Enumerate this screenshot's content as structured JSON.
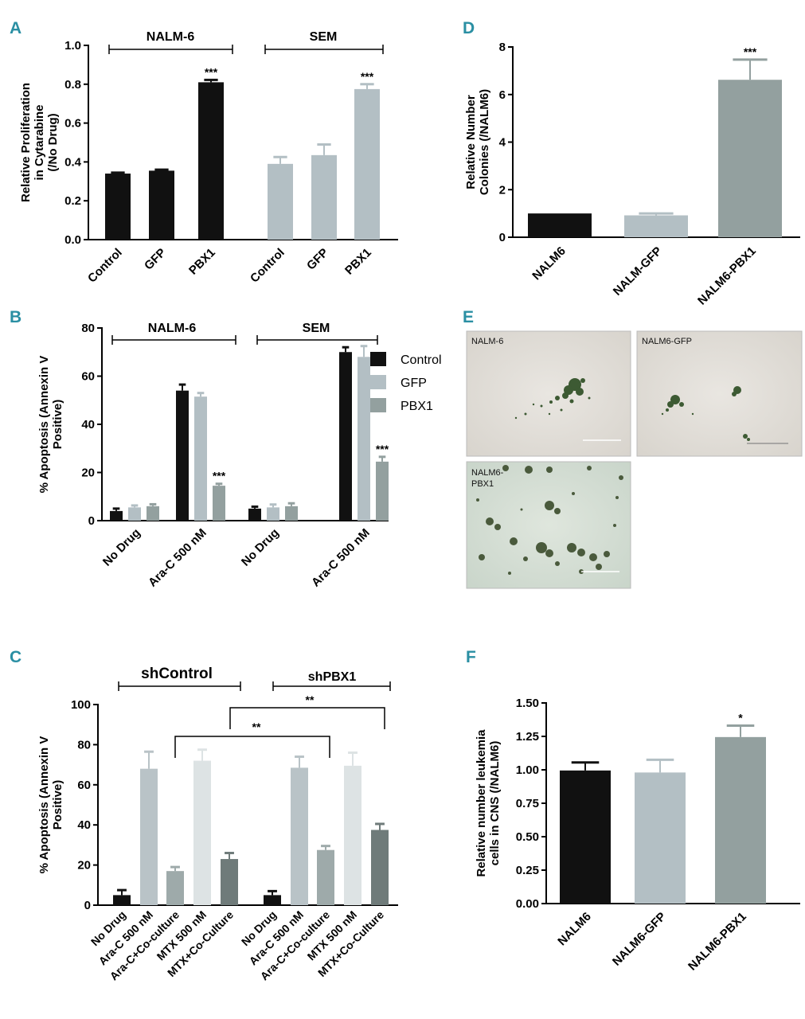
{
  "panels": {
    "A": "A",
    "B": "B",
    "C": "C",
    "D": "D",
    "E": "E",
    "F": "F"
  },
  "colors": {
    "control": "#111111",
    "gfp": "#b3bfc4",
    "pbx1": "#93a09f",
    "shc_light": "#b9c3c7",
    "shc_mid": "#9eaaaa",
    "shc_lighter": "#dde3e4",
    "shc_dark": "#6f7b7a",
    "panel_letter": "#2a8fa3"
  },
  "chart_data": [
    {
      "id": "A",
      "type": "bar",
      "ylabel": [
        "Relative Proliferation",
        "in Cytarabine",
        "(/No Drug)"
      ],
      "ylim": [
        0,
        1.0
      ],
      "yticks": [
        "0.0",
        "0.2",
        "0.4",
        "0.6",
        "0.8",
        "1.0"
      ],
      "groups": [
        {
          "label": "NALM-6",
          "categories": [
            "Control",
            "GFP",
            "PBX1"
          ],
          "values": [
            0.34,
            0.355,
            0.81
          ],
          "errors": [
            0.005,
            0.005,
            0.012
          ],
          "sig": [
            "",
            "",
            "***"
          ]
        },
        {
          "label": "SEM",
          "categories": [
            "Control",
            "GFP",
            "PBX1"
          ],
          "values": [
            0.39,
            0.435,
            0.775
          ],
          "errors": [
            0.035,
            0.055,
            0.025
          ],
          "sig": [
            "",
            "",
            "***"
          ]
        }
      ]
    },
    {
      "id": "B",
      "type": "bar",
      "ylabel": [
        "% Apoptosis (Annexin V",
        "Positive)"
      ],
      "ylim": [
        0,
        80
      ],
      "yticks": [
        "0",
        "20",
        "40",
        "60",
        "80"
      ],
      "legend": [
        "Control",
        "GFP",
        "PBX1"
      ],
      "groups": [
        {
          "label": "NALM-6",
          "categories": [
            "No Drug",
            "Ara-C 500 nM"
          ],
          "values": [
            [
              4,
              5.5,
              6
            ],
            [
              54,
              51.5,
              14.5
            ]
          ],
          "errors": [
            [
              1,
              0.8,
              0.8
            ],
            [
              2.5,
              1.5,
              0.8
            ]
          ],
          "sig": [
            [
              "",
              "",
              ""
            ],
            [
              "",
              "",
              "***"
            ]
          ]
        },
        {
          "label": "SEM",
          "categories": [
            "No Drug",
            "Ara-C 500 nM"
          ],
          "values": [
            [
              5,
              5.5,
              6
            ],
            [
              70,
              68,
              24.5
            ]
          ],
          "errors": [
            [
              0.8,
              1.2,
              1.2
            ],
            [
              2,
              4.5,
              2
            ]
          ],
          "sig": [
            [
              "",
              "",
              ""
            ],
            [
              "",
              "",
              "***"
            ]
          ]
        }
      ]
    },
    {
      "id": "C",
      "type": "bar",
      "ylabel": [
        "% Apoptosis (Annexin V",
        "Positive)"
      ],
      "ylim": [
        0,
        100
      ],
      "yticks": [
        "0",
        "20",
        "40",
        "60",
        "80",
        "100"
      ],
      "categories": [
        "No Drug",
        "Ara-C 500 nM",
        "Ara-C+Co-culture",
        "MTX 500 nM",
        "MTX+Co-Culture"
      ],
      "groups": [
        {
          "label": "shControl",
          "values": [
            5,
            68,
            17,
            72,
            23
          ],
          "errors": [
            2.5,
            8.5,
            2,
            5.5,
            3
          ]
        },
        {
          "label": "shPBX1",
          "values": [
            5,
            68.5,
            27.5,
            69.5,
            37.5
          ],
          "errors": [
            2,
            5.5,
            2,
            6.5,
            3
          ]
        }
      ],
      "comparisons": [
        "**",
        "**"
      ]
    },
    {
      "id": "D",
      "type": "bar",
      "ylabel": [
        "Relative Number",
        "Colonies (/NALM6)"
      ],
      "ylim": [
        0,
        8
      ],
      "yticks": [
        "0",
        "2",
        "4",
        "6",
        "8"
      ],
      "categories": [
        "NALM6",
        "NALM-GFP",
        "NALM6-PBX1"
      ],
      "values": [
        1.0,
        0.92,
        6.62
      ],
      "errors": [
        0,
        0.08,
        0.85
      ],
      "sig": [
        "",
        "",
        "***"
      ]
    },
    {
      "id": "F",
      "type": "bar",
      "ylabel": [
        "Relative number leukemia",
        "cells in CNS (/NALM6)"
      ],
      "ylim": [
        0,
        1.5
      ],
      "yticks": [
        "0.00",
        "0.25",
        "0.50",
        "0.75",
        "1.00",
        "1.25",
        "1.50"
      ],
      "categories": [
        "NALM6",
        "NALM6-GFP",
        "NALM6-PBX1"
      ],
      "values": [
        0.995,
        0.98,
        1.245
      ],
      "errors": [
        0.06,
        0.095,
        0.085
      ],
      "sig": [
        "",
        "",
        "*"
      ]
    }
  ],
  "photos": {
    "p1": "NALM-6",
    "p2": "NALM6-GFP",
    "p3_line1": "NALM6-",
    "p3_line2": "PBX1"
  }
}
